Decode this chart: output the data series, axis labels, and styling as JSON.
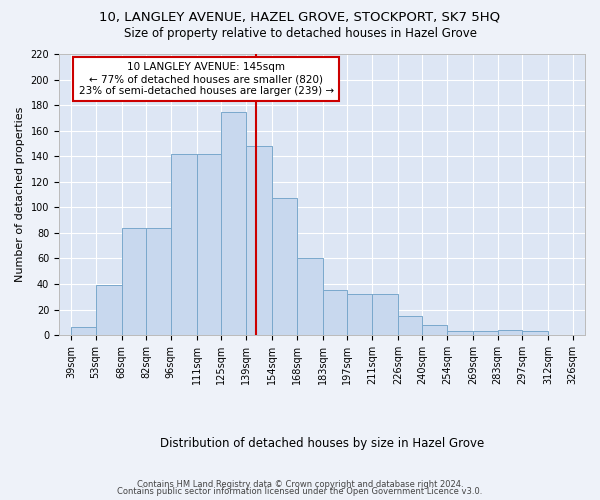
{
  "title": "10, LANGLEY AVENUE, HAZEL GROVE, STOCKPORT, SK7 5HQ",
  "subtitle": "Size of property relative to detached houses in Hazel Grove",
  "xlabel": "Distribution of detached houses by size in Hazel Grove",
  "ylabel": "Number of detached properties",
  "footnote1": "Contains HM Land Registry data © Crown copyright and database right 2024.",
  "footnote2": "Contains public sector information licensed under the Open Government Licence v3.0.",
  "categories": [
    "39sqm",
    "53sqm",
    "68sqm",
    "82sqm",
    "96sqm",
    "111sqm",
    "125sqm",
    "139sqm",
    "154sqm",
    "168sqm",
    "183sqm",
    "197sqm",
    "211sqm",
    "226sqm",
    "240sqm",
    "254sqm",
    "269sqm",
    "283sqm",
    "297sqm",
    "312sqm",
    "326sqm"
  ],
  "bin_edges": [
    39,
    53,
    68,
    82,
    96,
    111,
    125,
    139,
    154,
    168,
    183,
    197,
    211,
    226,
    240,
    254,
    269,
    283,
    297,
    312,
    326
  ],
  "hist_values": [
    6,
    39,
    84,
    84,
    142,
    142,
    175,
    148,
    107,
    60,
    35,
    32,
    32,
    15,
    8,
    3,
    3,
    4,
    3,
    0
  ],
  "bar_color": "#c8d8ee",
  "bar_edge_color": "#7aa8cc",
  "vline_x": 145,
  "vline_color": "#cc0000",
  "annotation_text": "10 LANGLEY AVENUE: 145sqm\n← 77% of detached houses are smaller (820)\n23% of semi-detached houses are larger (239) →",
  "ylim": [
    0,
    220
  ],
  "yticks": [
    0,
    20,
    40,
    60,
    80,
    100,
    120,
    140,
    160,
    180,
    200,
    220
  ],
  "fig_bg_color": "#eef2f9",
  "plot_bg_color": "#dde6f4",
  "grid_color": "#ffffff",
  "title_fontsize": 9.5,
  "subtitle_fontsize": 8.5,
  "ylabel_fontsize": 8,
  "xlabel_fontsize": 8.5,
  "tick_fontsize": 7,
  "annotation_fontsize": 7.5,
  "footnote_fontsize": 6
}
